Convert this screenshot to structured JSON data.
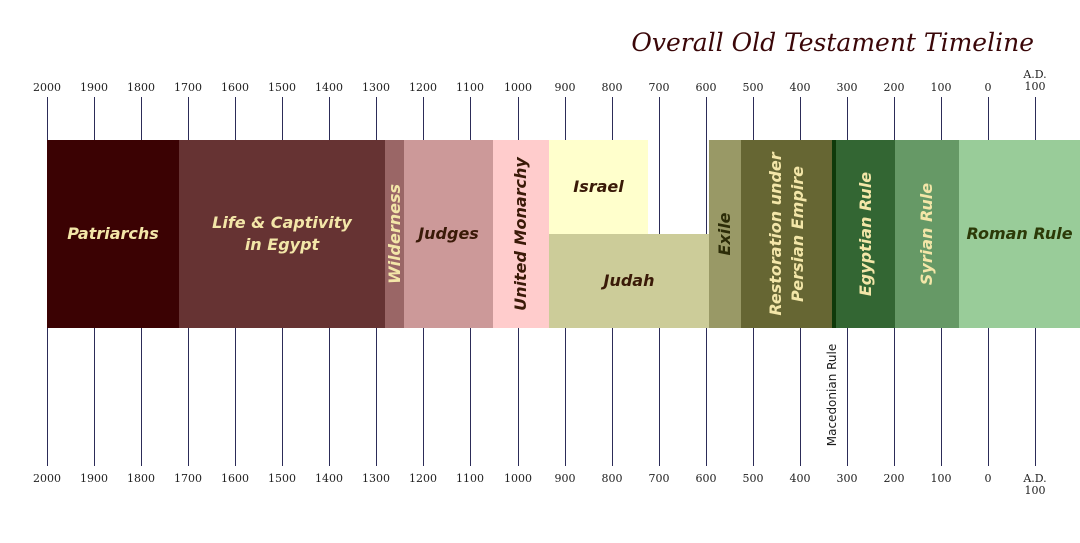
{
  "title": "Overall Old Testament Timeline",
  "axis": {
    "ad_label": "A.D.",
    "top_ticks": [
      "2000",
      "1900",
      "1800",
      "1700",
      "1600",
      "1500",
      "1400",
      "1300",
      "1200",
      "1100",
      "1000",
      "900",
      "800",
      "700",
      "600",
      "500",
      "400",
      "300",
      "200",
      "100",
      "0",
      "100"
    ],
    "bottom_ticks": [
      "2000",
      "1900",
      "1800",
      "1700",
      "1600",
      "1500",
      "1400",
      "1300",
      "1200",
      "1100",
      "1000",
      "900",
      "800",
      "700",
      "600",
      "500",
      "400",
      "300",
      "200",
      "100",
      "0",
      "100"
    ]
  },
  "periods": [
    {
      "key": "patriarchs",
      "label": "Patriarchs",
      "start": 2000,
      "end": 1720,
      "row": "full",
      "color": "#3b0203",
      "text_color": "#f3e6a8",
      "vertical": false
    },
    {
      "key": "egypt",
      "label": "Life & Captivity\nin Egypt",
      "start": 1720,
      "end": 1282,
      "row": "full",
      "color": "#663333",
      "text_color": "#f3e6a8",
      "vertical": false
    },
    {
      "key": "wilderness",
      "label": "Wilderness",
      "start": 1282,
      "end": 1242,
      "row": "full",
      "color": "#9a6666",
      "text_color": "#f3e6a8",
      "vertical": true
    },
    {
      "key": "judges",
      "label": "Judges",
      "start": 1242,
      "end": 1052,
      "row": "full",
      "color": "#cc9999",
      "text_color": "#3a1a08",
      "vertical": false
    },
    {
      "key": "united-monarchy",
      "label": "United Monarchy",
      "start": 1052,
      "end": 932,
      "row": "full",
      "color": "#ffcccc",
      "text_color": "#3a1a08",
      "vertical": true
    },
    {
      "key": "israel",
      "label": "Israel",
      "start": 932,
      "end": 722,
      "row": "top",
      "color": "#ffffcc",
      "text_color": "#3a1a08",
      "vertical": false
    },
    {
      "key": "judah",
      "label": "Judah",
      "start": 932,
      "end": 592,
      "row": "bottom",
      "color": "#cccc99",
      "text_color": "#3a1a08",
      "vertical": false
    },
    {
      "key": "exile",
      "label": "Exile",
      "start": 592,
      "end": 526,
      "row": "full",
      "color": "#999966",
      "text_color": "#2c2c08",
      "vertical": true
    },
    {
      "key": "persian",
      "label": "Restoration under\nPersian Empire",
      "start": 526,
      "end": 332,
      "row": "full",
      "color": "#666633",
      "text_color": "#f3e6a8",
      "vertical": true
    },
    {
      "key": "macedonian",
      "label": "",
      "start": 332,
      "end": 323,
      "row": "full",
      "color": "#0f3a0a",
      "text_color": "#ffffff",
      "vertical": false
    },
    {
      "key": "egyptian",
      "label": "Egyptian Rule",
      "start": 323,
      "end": 198,
      "row": "full",
      "color": "#336633",
      "text_color": "#f3e6a8",
      "vertical": true
    },
    {
      "key": "syrian",
      "label": "Syrian Rule",
      "start": 198,
      "end": 62,
      "row": "full",
      "color": "#669966",
      "text_color": "#f3e6a8",
      "vertical": true
    },
    {
      "key": "roman",
      "label": "Roman Rule",
      "start": 62,
      "end": -200,
      "row": "full",
      "color": "#99cc99",
      "text_color": "#2c3a08",
      "vertical": false
    }
  ],
  "annotations": {
    "macedonian_rule": "Macedonian Rule"
  }
}
